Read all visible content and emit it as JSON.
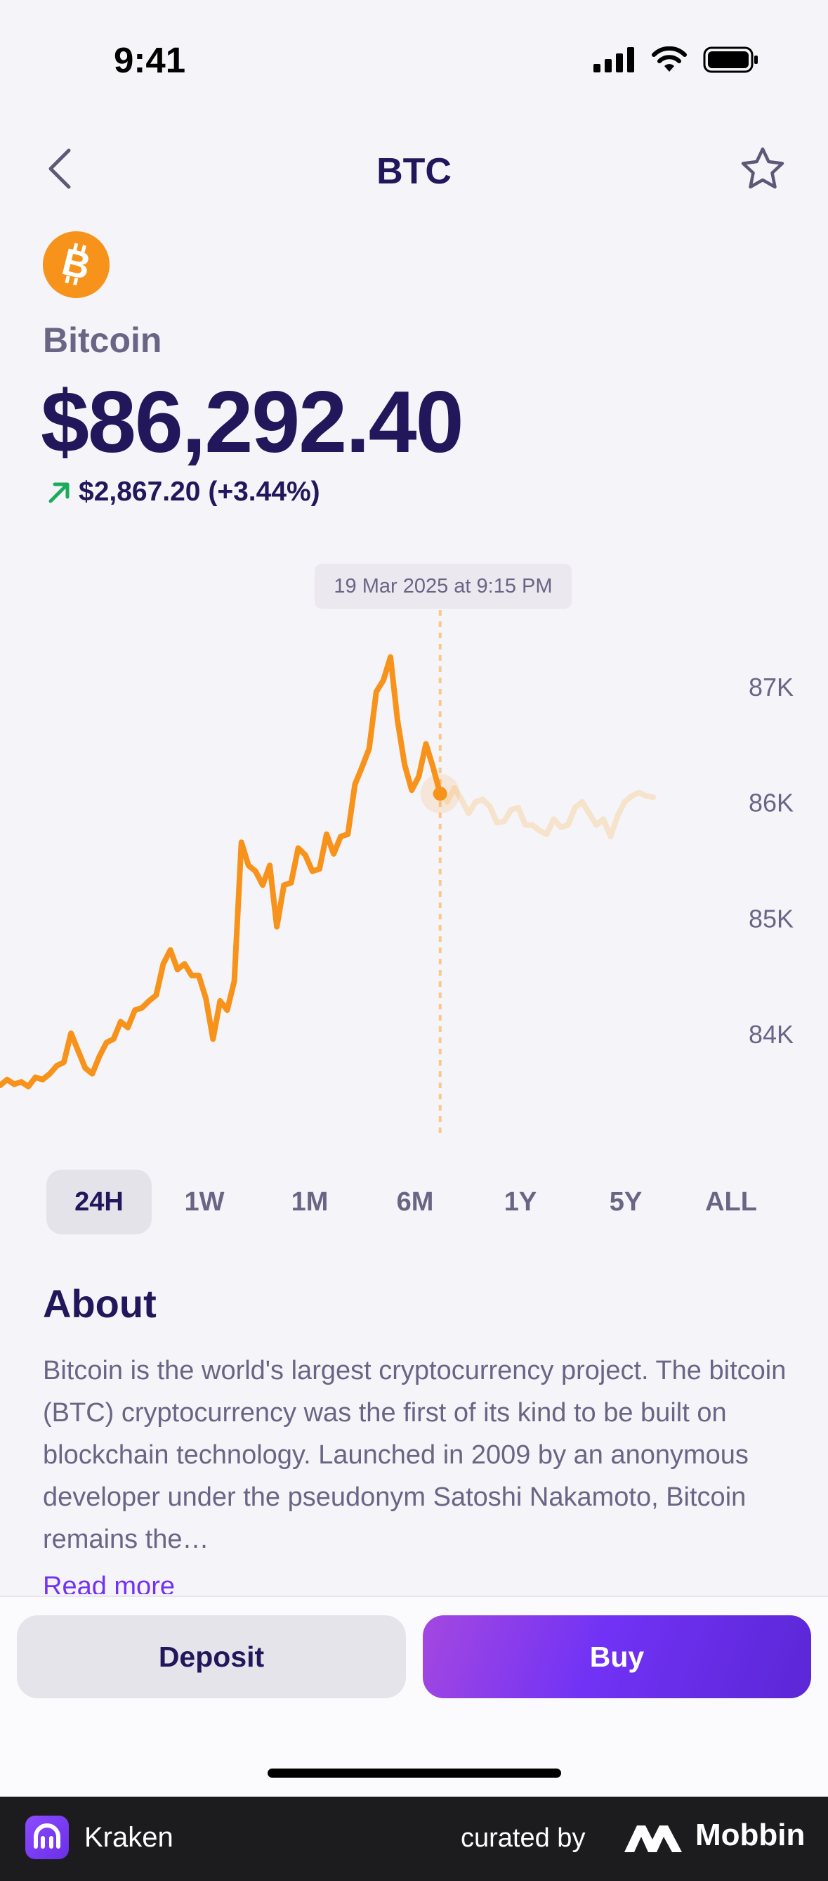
{
  "status": {
    "time": "9:41"
  },
  "header": {
    "title": "BTC"
  },
  "coin": {
    "name": "Bitcoin",
    "price": "$86,292.40",
    "change": "$2,867.20 (+3.44%)",
    "brand_color": "#f7931a"
  },
  "chart_data": {
    "type": "line",
    "tooltip": "19 Mar 2025 at 9:15 PM",
    "y_ticks": [
      "87K",
      "86K",
      "85K",
      "84K"
    ],
    "ylim": [
      83400,
      87400
    ],
    "x": [
      0,
      1,
      2,
      3,
      4,
      5,
      6,
      7,
      8,
      9,
      10,
      11,
      12,
      13,
      14,
      15,
      16,
      17,
      18,
      19,
      20,
      21,
      22,
      23,
      24,
      25,
      26,
      27,
      28,
      29,
      30,
      31,
      32,
      33,
      34,
      35,
      36,
      37,
      38,
      39,
      40,
      41,
      42,
      43,
      44,
      45,
      46,
      47,
      48,
      49,
      50,
      51,
      52,
      53,
      54,
      55,
      56,
      57,
      58,
      59,
      60,
      61,
      62,
      63,
      64,
      65,
      66,
      67,
      68,
      69,
      70,
      71,
      72,
      73,
      74,
      75,
      76,
      77,
      78,
      79,
      80,
      81,
      82,
      83,
      84,
      85,
      86,
      87,
      88,
      89,
      90,
      91,
      92
    ],
    "values": [
      83550,
      83600,
      83560,
      83580,
      83540,
      83620,
      83600,
      83650,
      83720,
      83750,
      84000,
      83850,
      83700,
      83650,
      83800,
      83920,
      83950,
      84100,
      84050,
      84200,
      84220,
      84280,
      84330,
      84600,
      84720,
      84550,
      84600,
      84500,
      84500,
      84300,
      83950,
      84280,
      84200,
      84450,
      85650,
      85450,
      85400,
      85280,
      85450,
      84920,
      85280,
      85300,
      85600,
      85540,
      85400,
      85420,
      85720,
      85550,
      85700,
      85720,
      86150,
      86300,
      86460,
      86950,
      87050,
      87250,
      86700,
      86320,
      86100,
      86220,
      86500,
      86300,
      86070,
      86000,
      86120,
      86020,
      85900,
      86000,
      86020,
      85960,
      85820,
      85830,
      85930,
      85950,
      85800,
      85800,
      85750,
      85720,
      85850,
      85780,
      85800,
      85950,
      86000,
      85900,
      85800,
      85850,
      85700,
      85880,
      86000,
      86050,
      86080,
      86050,
      86040
    ],
    "selected_index": 62,
    "line_color": "#f7931a",
    "faded_color": "#f5e3cc"
  },
  "ranges": [
    "24H",
    "1W",
    "1M",
    "6M",
    "1Y",
    "5Y",
    "ALL"
  ],
  "active_range": "24H",
  "about": {
    "title": "About",
    "text": "Bitcoin is the world's largest cryptocurrency project. The bitcoin (BTC) cryptocurrency was the first of its kind to be built on blockchain technology. Launched in 2009 by an anonymous developer under the pseudonym Satoshi Nakamoto, Bitcoin remains the…",
    "read_more": "Read more"
  },
  "actions": {
    "deposit": "Deposit",
    "buy": "Buy"
  },
  "footer": {
    "app": "Kraken",
    "curated": "curated by",
    "brand": "Mobbin"
  }
}
